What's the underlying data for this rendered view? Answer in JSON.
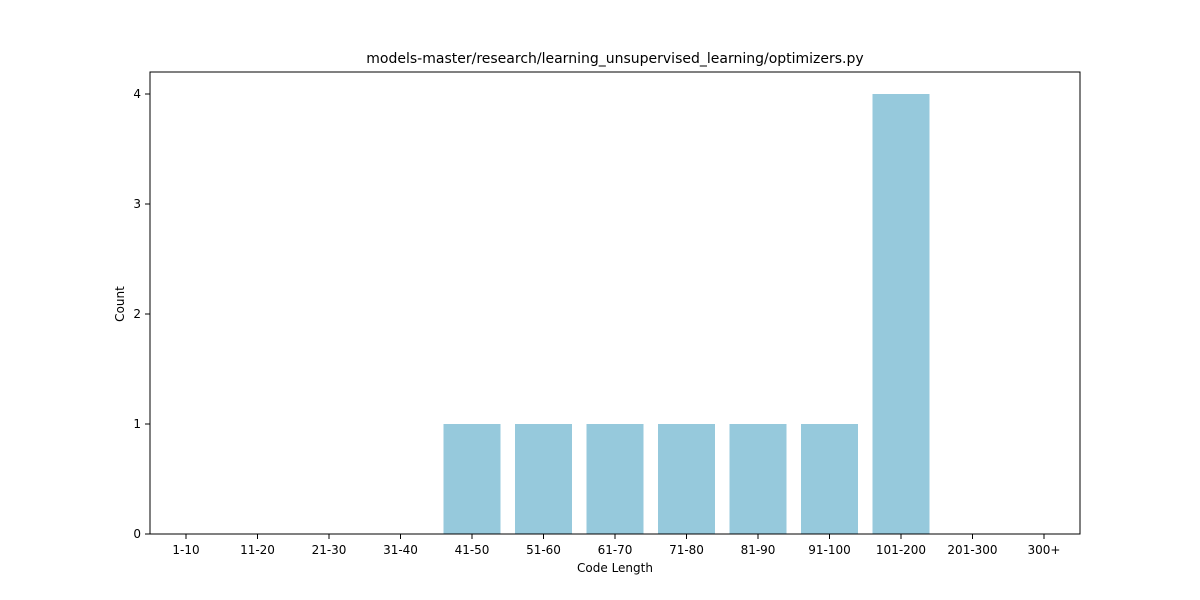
{
  "chart_data": {
    "type": "bar",
    "title": "models-master/research/learning_unsupervised_learning/optimizers.py",
    "xlabel": "Code Length",
    "ylabel": "Count",
    "categories": [
      "1-10",
      "11-20",
      "21-30",
      "31-40",
      "41-50",
      "51-60",
      "61-70",
      "71-80",
      "81-90",
      "91-100",
      "101-200",
      "201-300",
      "300+"
    ],
    "values": [
      0,
      0,
      0,
      0,
      1,
      1,
      1,
      1,
      1,
      1,
      4,
      0,
      0
    ],
    "yticks": [
      "0",
      "1",
      "2",
      "3",
      "4"
    ],
    "ylim": [
      0,
      4.2
    ],
    "bar_color": "#96c9dc",
    "grid": false,
    "legend": "none"
  }
}
